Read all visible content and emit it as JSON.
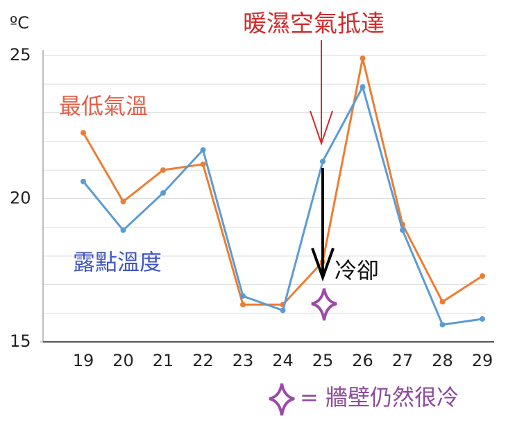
{
  "chart_data": {
    "type": "line",
    "unit_label": "ºC",
    "annotations": {
      "warm": "暖濕空氣抵達",
      "cool": "冷卻",
      "legend": "= 牆壁仍然很冷"
    },
    "categories": [
      "19",
      "20",
      "21",
      "22",
      "23",
      "24",
      "25",
      "26",
      "27",
      "28",
      "29"
    ],
    "series": [
      {
        "name": "最低氣溫",
        "color": "#ed7d31",
        "label_color": "#e0604a",
        "values": [
          22.3,
          19.9,
          21.0,
          21.2,
          16.3,
          16.3,
          17.8,
          24.9,
          19.1,
          16.4,
          17.3
        ]
      },
      {
        "name": "露點溫度",
        "color": "#5b9bd5",
        "label_color": "#3f56c0",
        "values": [
          20.6,
          18.9,
          20.2,
          21.7,
          16.6,
          16.1,
          21.3,
          23.9,
          18.9,
          15.6,
          15.8
        ]
      }
    ],
    "ylim": [
      15,
      25
    ],
    "yticks": [
      15,
      20,
      25
    ],
    "minor_yticks": [
      16,
      17,
      18,
      19,
      21,
      22,
      23,
      24
    ],
    "grid": true
  }
}
